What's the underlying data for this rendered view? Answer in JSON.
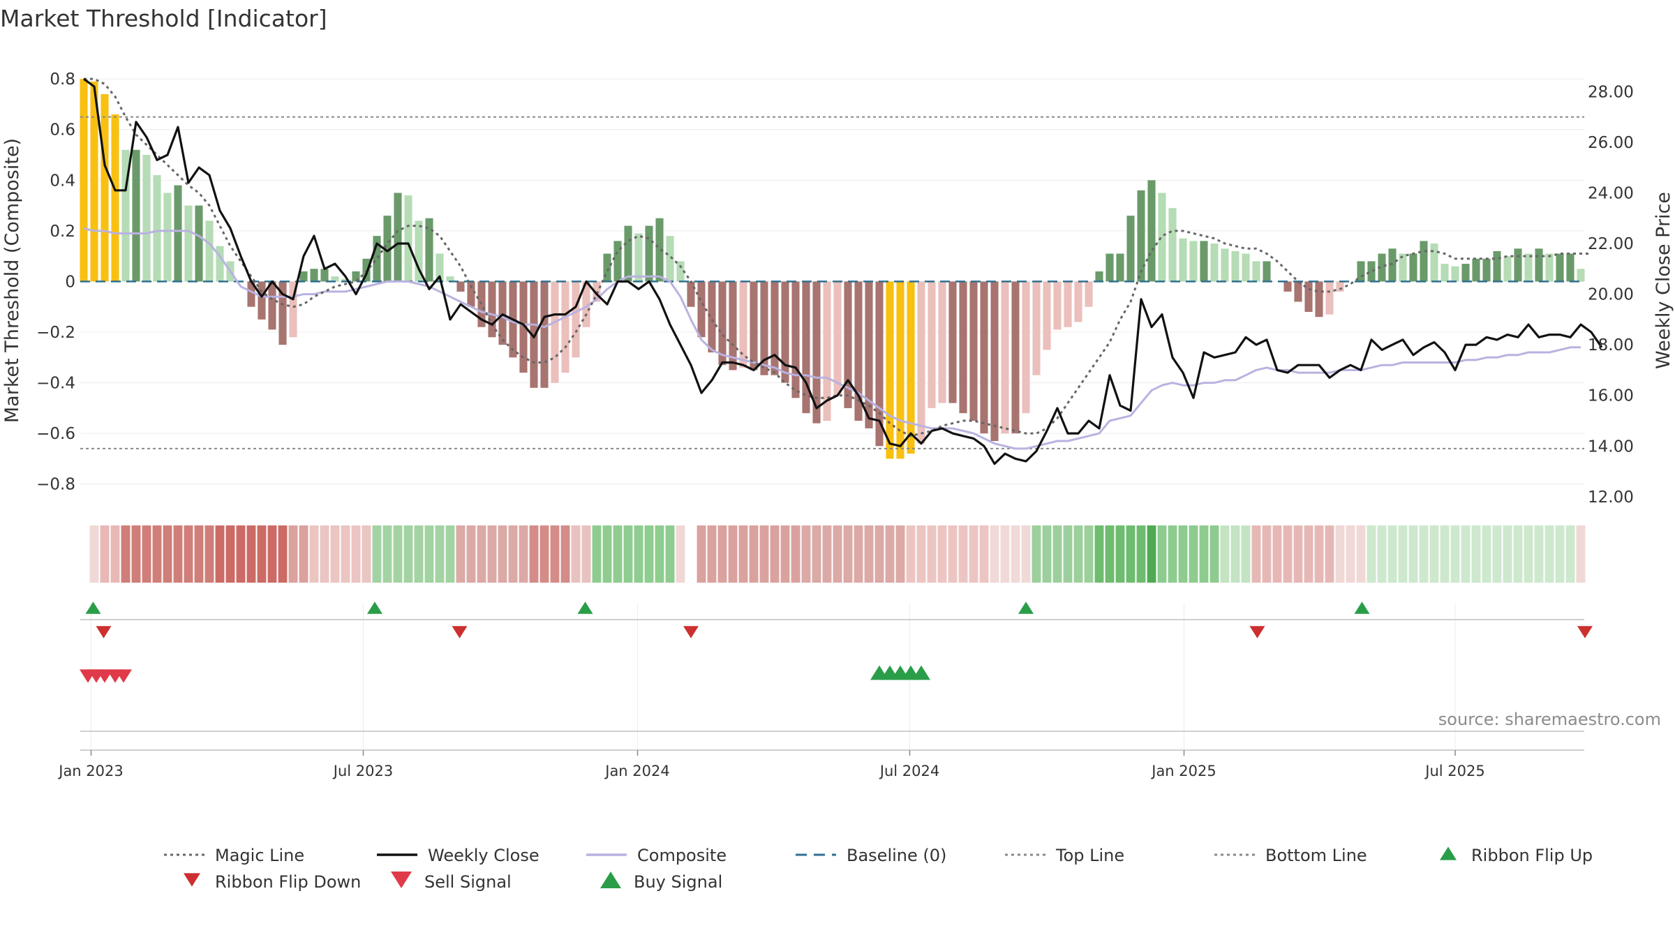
{
  "chart_data": {
    "type": "line",
    "title": "Market Threshold [Indicator]",
    "ylabel_left": "Market Threshold (Composite)",
    "ylabel_right": "Weekly Close Price",
    "source": "source: sharemaestro.com",
    "ylim_left": [
      -0.9,
      0.85
    ],
    "ylim_right": [
      11.5,
      29.0
    ],
    "left_ticks": [
      "0.8",
      "0.6",
      "0.4",
      "0.2",
      "0",
      "−0.2",
      "−0.4",
      "−0.6",
      "−0.8"
    ],
    "left_tick_values": [
      0.8,
      0.6,
      0.4,
      0.2,
      0,
      -0.2,
      -0.4,
      -0.6,
      -0.8
    ],
    "right_ticks": [
      "28.00",
      "26.00",
      "24.00",
      "22.00",
      "20.00",
      "18.00",
      "16.00",
      "14.00",
      "12.00"
    ],
    "right_tick_values": [
      28,
      26,
      24,
      22,
      20,
      18,
      16,
      14,
      12
    ],
    "x_ticks": [
      "Jan 2023",
      "Jul 2023",
      "Jan 2024",
      "Jul 2024",
      "Jan 2025",
      "Jul 2025"
    ],
    "x_tick_weeks": [
      0.7,
      26.7,
      52.9,
      78.9,
      105.1,
      131.0
    ],
    "top_line": 0.65,
    "bottom_line": -0.66,
    "baseline": 0,
    "weeks": 144,
    "histogram": [
      0.8,
      0.79,
      0.74,
      0.66,
      0.52,
      0.52,
      0.5,
      0.42,
      0.35,
      0.38,
      0.3,
      0.3,
      0.24,
      0.14,
      0.08,
      0.0,
      -0.1,
      -0.15,
      -0.19,
      -0.25,
      -0.22,
      0.04,
      0.05,
      0.05,
      0.02,
      0.01,
      0.04,
      0.09,
      0.18,
      0.26,
      0.35,
      0.34,
      0.24,
      0.25,
      0.11,
      0.02,
      -0.04,
      -0.1,
      -0.18,
      -0.22,
      -0.25,
      -0.3,
      -0.36,
      -0.42,
      -0.42,
      -0.4,
      -0.36,
      -0.3,
      -0.18,
      -0.08,
      0.11,
      0.16,
      0.22,
      0.19,
      0.22,
      0.25,
      0.18,
      0.08,
      -0.1,
      -0.22,
      -0.28,
      -0.33,
      -0.35,
      -0.34,
      -0.35,
      -0.37,
      -0.37,
      -0.4,
      -0.46,
      -0.52,
      -0.56,
      -0.55,
      -0.45,
      -0.5,
      -0.55,
      -0.58,
      -0.65,
      -0.7,
      -0.7,
      -0.68,
      -0.64,
      -0.5,
      -0.48,
      -0.48,
      -0.52,
      -0.55,
      -0.6,
      -0.63,
      -0.6,
      -0.6,
      -0.52,
      -0.37,
      -0.27,
      -0.19,
      -0.18,
      -0.16,
      -0.1,
      0.04,
      0.11,
      0.11,
      0.26,
      0.36,
      0.4,
      0.35,
      0.29,
      0.17,
      0.16,
      0.16,
      0.15,
      0.13,
      0.12,
      0.11,
      0.08,
      0.08,
      0.0,
      -0.04,
      -0.08,
      -0.12,
      -0.14,
      -0.13,
      -0.04,
      0.0,
      0.08,
      0.08,
      0.11,
      0.13,
      0.11,
      0.11,
      0.16,
      0.15,
      0.07,
      0.06,
      0.07,
      0.09,
      0.09,
      0.12,
      0.1,
      0.13,
      0.11,
      0.13,
      0.11,
      0.11,
      0.11,
      0.05
    ],
    "weekly_close": [
      28.5,
      28.2,
      25.1,
      24.1,
      24.1,
      26.8,
      26.2,
      25.3,
      25.5,
      26.6,
      24.4,
      25.0,
      24.7,
      23.3,
      22.6,
      21.5,
      20.5,
      19.9,
      20.5,
      20.0,
      19.8,
      21.5,
      22.3,
      21.0,
      21.2,
      20.7,
      20.0,
      20.8,
      22.0,
      21.7,
      22.0,
      22.0,
      21.0,
      20.2,
      20.7,
      19.0,
      19.6,
      19.3,
      19.0,
      18.8,
      19.2,
      19.0,
      18.8,
      18.3,
      19.1,
      19.2,
      19.2,
      19.5,
      20.5,
      20.0,
      19.6,
      20.5,
      20.5,
      20.2,
      20.5,
      19.8,
      18.8,
      18.0,
      17.2,
      16.1,
      16.6,
      17.3,
      17.3,
      17.2,
      17.0,
      17.4,
      17.6,
      17.2,
      17.1,
      16.5,
      15.5,
      15.8,
      16.0,
      16.6,
      16.0,
      15.1,
      15.0,
      14.1,
      14.0,
      14.5,
      14.1,
      14.6,
      14.7,
      14.5,
      14.4,
      14.3,
      14.0,
      13.3,
      13.7,
      13.5,
      13.4,
      13.8,
      14.6,
      15.5,
      14.5,
      14.5,
      15.0,
      14.7,
      16.8,
      15.6,
      15.4,
      19.8,
      18.7,
      19.2,
      17.5,
      16.9,
      15.9,
      17.7,
      17.5,
      17.6,
      17.7,
      18.3,
      18.0,
      18.2,
      17.0,
      16.9,
      17.2,
      17.2,
      17.2,
      16.7,
      17.0,
      17.2,
      17.0,
      18.2,
      17.8,
      18.0,
      18.2,
      17.6,
      17.9,
      18.1,
      17.7,
      17.0,
      18.0,
      18.0,
      18.3,
      18.2,
      18.4,
      18.3,
      18.8,
      18.3,
      18.4,
      18.4,
      18.3,
      18.8,
      18.5,
      17.9
    ],
    "composite": [
      0.21,
      0.2,
      0.2,
      0.19,
      0.19,
      0.19,
      0.19,
      0.2,
      0.2,
      0.2,
      0.2,
      0.18,
      0.15,
      0.1,
      0.04,
      -0.02,
      -0.04,
      -0.06,
      -0.06,
      -0.06,
      -0.06,
      -0.05,
      -0.05,
      -0.04,
      -0.04,
      -0.04,
      -0.03,
      -0.02,
      -0.01,
      0.0,
      0.0,
      0.0,
      -0.01,
      -0.02,
      -0.04,
      -0.06,
      -0.08,
      -0.1,
      -0.12,
      -0.13,
      -0.14,
      -0.16,
      -0.17,
      -0.17,
      -0.18,
      -0.16,
      -0.14,
      -0.12,
      -0.1,
      -0.07,
      -0.03,
      0.0,
      0.02,
      0.02,
      0.02,
      0.02,
      0.0,
      -0.06,
      -0.15,
      -0.23,
      -0.27,
      -0.29,
      -0.3,
      -0.31,
      -0.32,
      -0.33,
      -0.34,
      -0.36,
      -0.37,
      -0.37,
      -0.38,
      -0.38,
      -0.4,
      -0.42,
      -0.44,
      -0.47,
      -0.5,
      -0.53,
      -0.55,
      -0.56,
      -0.57,
      -0.58,
      -0.58,
      -0.58,
      -0.59,
      -0.6,
      -0.62,
      -0.64,
      -0.65,
      -0.66,
      -0.66,
      -0.65,
      -0.64,
      -0.63,
      -0.63,
      -0.62,
      -0.61,
      -0.6,
      -0.55,
      -0.54,
      -0.53,
      -0.48,
      -0.43,
      -0.41,
      -0.4,
      -0.41,
      -0.41,
      -0.4,
      -0.4,
      -0.39,
      -0.39,
      -0.37,
      -0.35,
      -0.34,
      -0.35,
      -0.35,
      -0.36,
      -0.36,
      -0.36,
      -0.36,
      -0.35,
      -0.35,
      -0.35,
      -0.34,
      -0.33,
      -0.33,
      -0.32,
      -0.32,
      -0.32,
      -0.32,
      -0.32,
      -0.32,
      -0.31,
      -0.31,
      -0.3,
      -0.3,
      -0.29,
      -0.29,
      -0.28,
      -0.28,
      -0.28,
      -0.27,
      -0.26,
      -0.26
    ],
    "magic_line": [
      0.8,
      0.8,
      0.78,
      0.73,
      0.65,
      0.58,
      0.54,
      0.5,
      0.46,
      0.42,
      0.38,
      0.35,
      0.3,
      0.22,
      0.14,
      0.08,
      0.02,
      -0.04,
      -0.07,
      -0.09,
      -0.1,
      -0.09,
      -0.06,
      -0.04,
      -0.02,
      -0.01,
      0.0,
      0.04,
      0.09,
      0.15,
      0.2,
      0.22,
      0.22,
      0.21,
      0.18,
      0.12,
      0.06,
      -0.02,
      -0.09,
      -0.17,
      -0.23,
      -0.27,
      -0.3,
      -0.32,
      -0.32,
      -0.3,
      -0.26,
      -0.2,
      -0.13,
      -0.05,
      0.04,
      0.12,
      0.16,
      0.18,
      0.17,
      0.13,
      0.1,
      0.06,
      0.0,
      -0.08,
      -0.15,
      -0.21,
      -0.25,
      -0.29,
      -0.32,
      -0.34,
      -0.36,
      -0.4,
      -0.43,
      -0.45,
      -0.46,
      -0.46,
      -0.45,
      -0.45,
      -0.47,
      -0.49,
      -0.52,
      -0.56,
      -0.59,
      -0.61,
      -0.6,
      -0.59,
      -0.57,
      -0.56,
      -0.55,
      -0.55,
      -0.56,
      -0.57,
      -0.58,
      -0.59,
      -0.6,
      -0.6,
      -0.58,
      -0.54,
      -0.48,
      -0.42,
      -0.36,
      -0.3,
      -0.24,
      -0.15,
      -0.08,
      0.04,
      0.12,
      0.18,
      0.2,
      0.2,
      0.19,
      0.18,
      0.17,
      0.15,
      0.14,
      0.13,
      0.13,
      0.11,
      0.08,
      0.04,
      0.0,
      -0.03,
      -0.04,
      -0.04,
      -0.03,
      -0.01,
      0.02,
      0.04,
      0.06,
      0.07,
      0.1,
      0.11,
      0.12,
      0.12,
      0.11,
      0.09,
      0.09,
      0.09,
      0.09,
      0.09,
      0.1,
      0.1,
      0.1,
      0.1,
      0.1,
      0.11,
      0.11,
      0.11,
      0.11
    ],
    "ribbon": [
      [
        0.7,
        1.25,
        "#f0d8d6"
      ],
      [
        1.25,
        2.0,
        "#c9e6c9"
      ],
      [
        2.0,
        4.0,
        "#e8b8b5"
      ],
      [
        4.0,
        13.0,
        "#d07e79"
      ],
      [
        13.0,
        20.0,
        "#cc6a65"
      ],
      [
        20.0,
        22.0,
        "#dba19d"
      ],
      [
        22.0,
        28.0,
        "#ebc5c2"
      ],
      [
        28.0,
        36.0,
        "#a3d3a3"
      ],
      [
        36.0,
        43.0,
        "#dba9a6"
      ],
      [
        43.0,
        47.0,
        "#d48c88"
      ],
      [
        47.0,
        48.5,
        "#e8c2bf"
      ],
      [
        48.5,
        57.0,
        "#8fcc8f"
      ],
      [
        57.0,
        58.0,
        "#f0d8d6"
      ],
      [
        59.0,
        69.0,
        "#daa29e"
      ],
      [
        69.0,
        79.0,
        "#dba9a6"
      ],
      [
        79.0,
        87.0,
        "#ecc5c2"
      ],
      [
        87.0,
        91.0,
        "#f0d9d7"
      ],
      [
        91.0,
        97.0,
        "#9dcf9d"
      ],
      [
        97.0,
        102.0,
        "#6ebc70"
      ],
      [
        102.0,
        103.0,
        "#4fab53"
      ],
      [
        103.0,
        109.0,
        "#8ecb8f"
      ],
      [
        109.0,
        112.0,
        "#c3e3c3"
      ],
      [
        112.0,
        120.0,
        "#e6b8b5"
      ],
      [
        120.0,
        123.0,
        "#f0d8d6"
      ],
      [
        123.0,
        143.0,
        "#cde8cd"
      ],
      [
        143.0,
        144.0,
        "#f0d8d6"
      ]
    ],
    "ribbon_flip_up": [
      0.9,
      27.8,
      47.9,
      90.0,
      122.1
    ],
    "ribbon_flip_down": [
      1.9,
      35.9,
      58.0,
      112.1,
      143.4
    ],
    "sell_signal": [
      0.4,
      1.2,
      2.0,
      3.0,
      3.8
    ],
    "buy_signal": [
      76.0,
      77.0,
      78.0,
      79.0,
      80.0
    ],
    "legend": [
      {
        "label": "Magic Line",
        "kind": "dot-line",
        "color": "#666666"
      },
      {
        "label": "Weekly Close",
        "kind": "line",
        "color": "#111111"
      },
      {
        "label": "Composite",
        "kind": "line",
        "color": "#b9b2e0"
      },
      {
        "label": "Baseline (0)",
        "kind": "dash-line",
        "color": "#2f6f8f"
      },
      {
        "label": "Top Line",
        "kind": "dot-line",
        "color": "#888888"
      },
      {
        "label": "Bottom Line",
        "kind": "dot-line",
        "color": "#888888"
      },
      {
        "label": "Ribbon Flip Up",
        "kind": "tri-up",
        "color": "#2a9d48"
      },
      {
        "label": "Ribbon Flip Down",
        "kind": "tri-down",
        "color": "#cc2f2f"
      },
      {
        "label": "Sell Signal",
        "kind": "tri-down-lg",
        "color": "#e03a4a"
      },
      {
        "label": "Buy Signal",
        "kind": "tri-up-lg",
        "color": "#2a9d48"
      }
    ],
    "colors": {
      "hist_strong_green": "#6a9a6a",
      "hist_light_green": "#b5dcb5",
      "hist_strong_red": "#a87470",
      "hist_light_red": "#ebbfbb",
      "hist_extreme": "#f8c010",
      "weekly_close": "#111111",
      "composite": "#b9b2e0",
      "magic_line": "#666666",
      "baseline": "#2f6f8f",
      "thresholds": "#888888"
    }
  }
}
